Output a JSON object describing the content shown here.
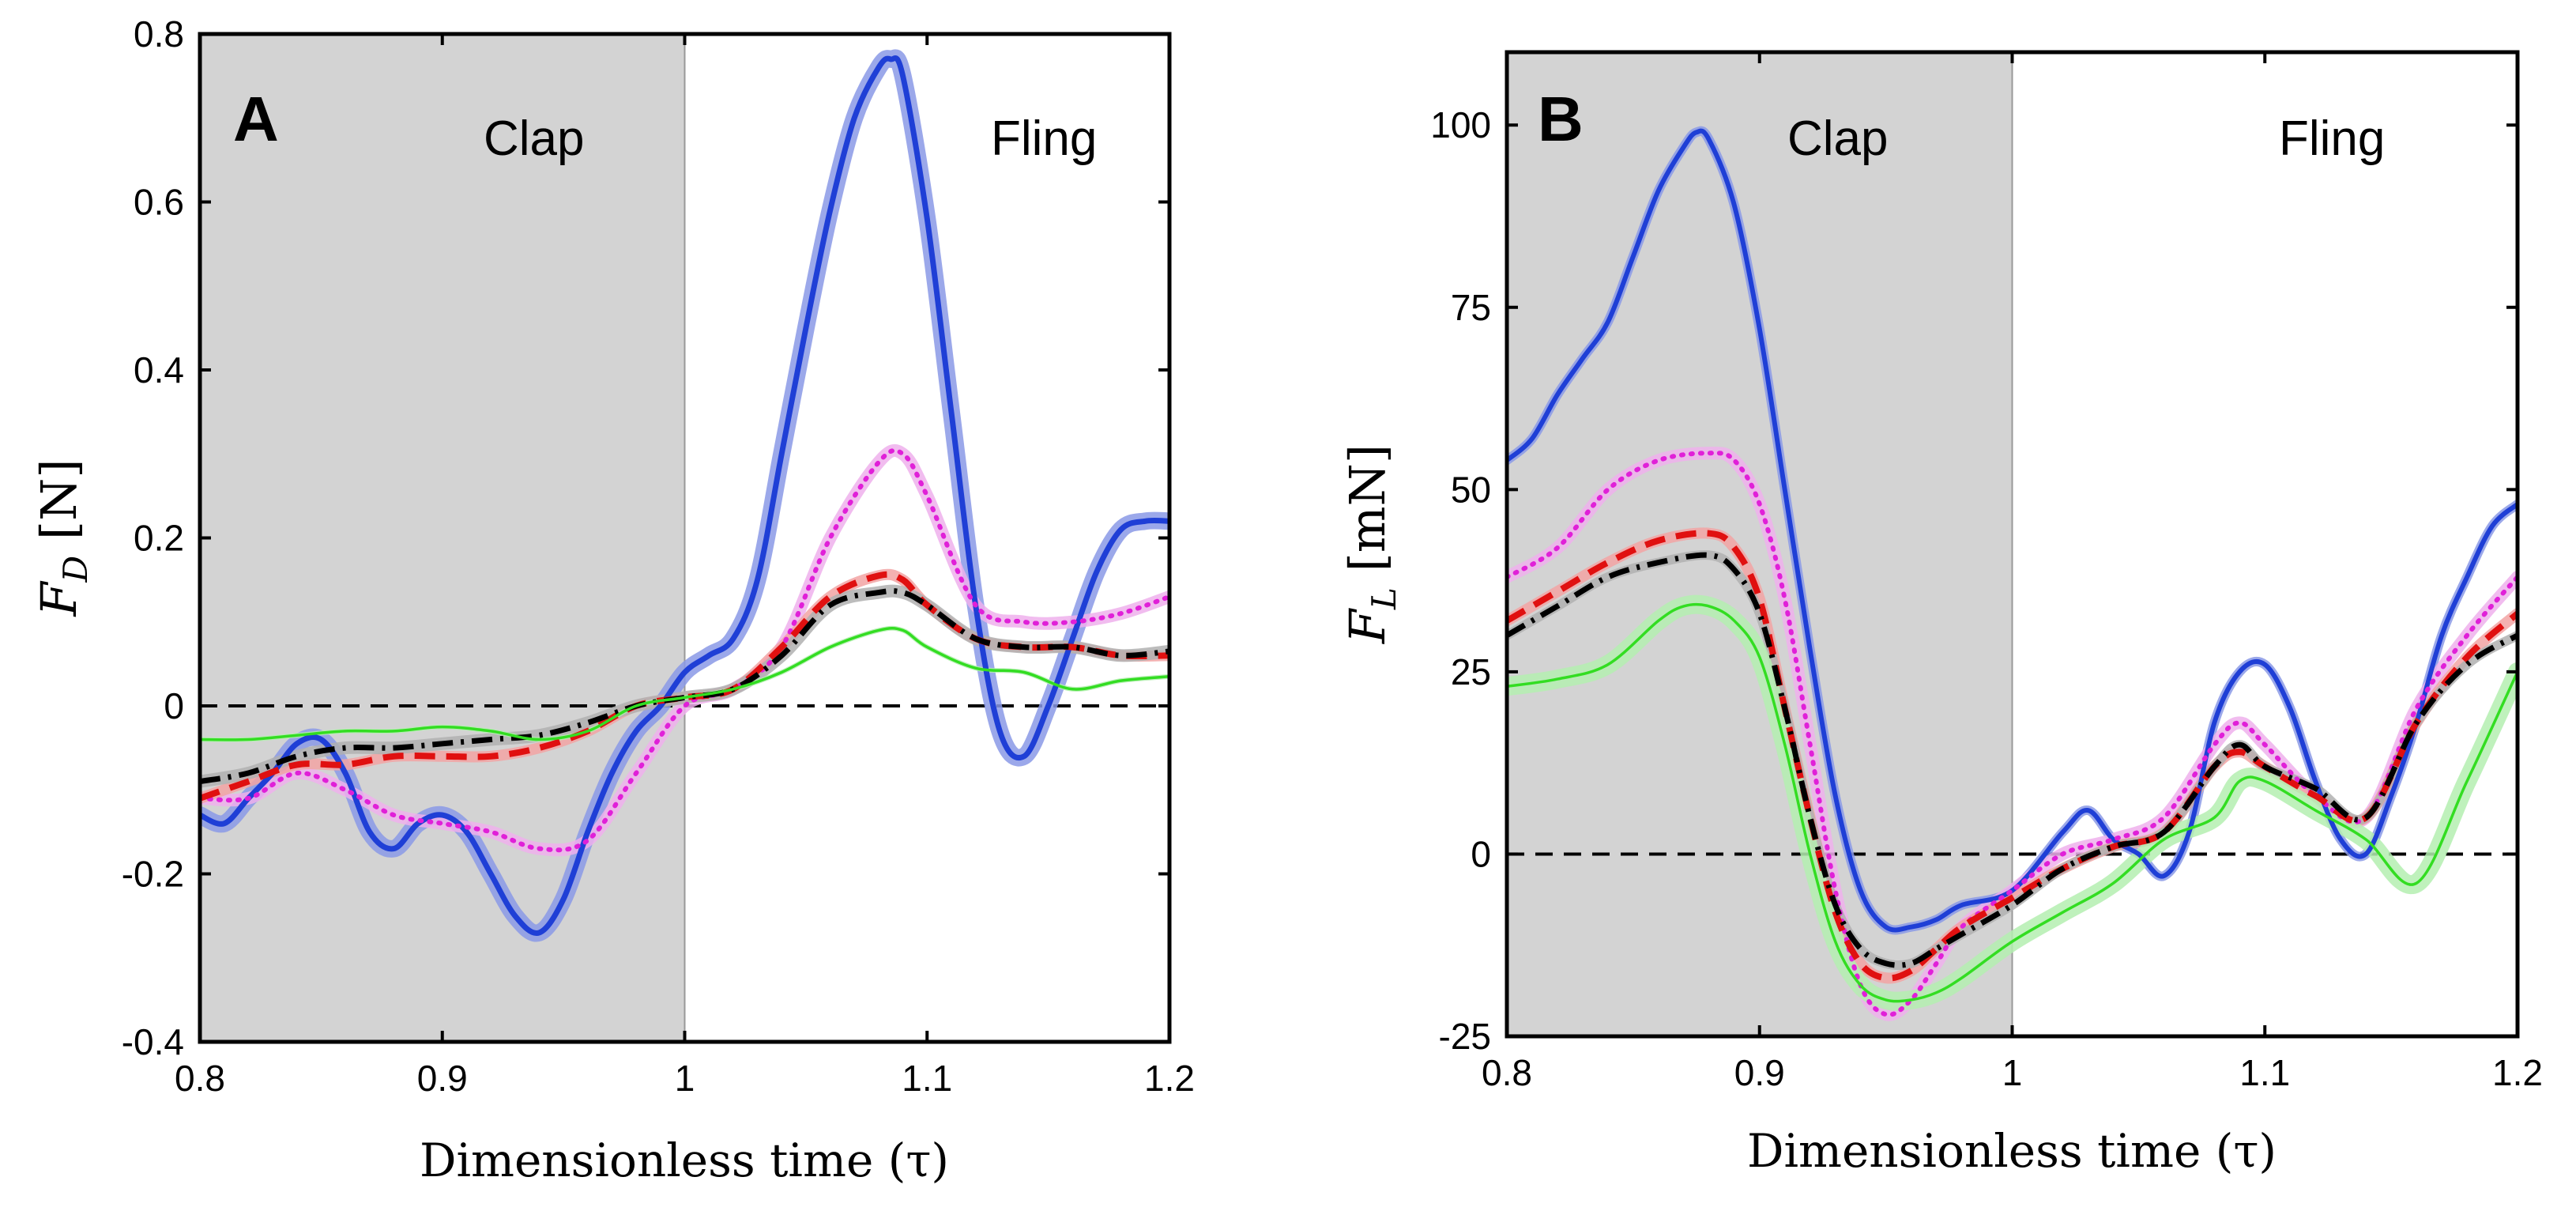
{
  "chart_data": [
    {
      "type": "line",
      "panel_label": "A",
      "regions": [
        {
          "label": "Clap",
          "x_range": [
            0.8,
            1.0
          ],
          "shaded": true,
          "color": "#d3d3d3"
        },
        {
          "label": "Fling",
          "x_range": [
            1.0,
            1.2
          ],
          "shaded": false
        }
      ],
      "xlabel": "Dimensionless time (τ)",
      "ylabel": "F_D [N]",
      "ylabel_main": "F",
      "ylabel_sub": "D",
      "ylabel_unit": " [N]",
      "xlim": [
        0.8,
        1.2
      ],
      "ylim": [
        -0.4,
        0.8
      ],
      "xticks": [
        0.8,
        0.9,
        1,
        1.1,
        1.2
      ],
      "xtick_labels": [
        "0.8",
        "0.9",
        "1",
        "1.1",
        "1.2"
      ],
      "yticks": [
        -0.4,
        -0.2,
        0,
        0.2,
        0.4,
        0.6,
        0.8
      ],
      "ytick_labels": [
        "-0.4",
        "-0.2",
        "0",
        "0.2",
        "0.4",
        "0.6",
        "0.8"
      ],
      "zero_line": true,
      "series": [
        {
          "name": "blue",
          "color": "#1f3fd6",
          "style": "solid",
          "width": 7,
          "band": "#8a99e6",
          "band_width": 22,
          "x": [
            0.8,
            0.81,
            0.82,
            0.83,
            0.84,
            0.85,
            0.86,
            0.87,
            0.88,
            0.89,
            0.9,
            0.91,
            0.92,
            0.93,
            0.94,
            0.95,
            0.96,
            0.97,
            0.98,
            0.99,
            1.0,
            1.01,
            1.02,
            1.03,
            1.04,
            1.05,
            1.06,
            1.07,
            1.08,
            1.085,
            1.09,
            1.1,
            1.11,
            1.12,
            1.13,
            1.14,
            1.15,
            1.16,
            1.17,
            1.18,
            1.19,
            1.2
          ],
          "y": [
            -0.13,
            -0.14,
            -0.11,
            -0.08,
            -0.045,
            -0.04,
            -0.08,
            -0.15,
            -0.17,
            -0.14,
            -0.13,
            -0.15,
            -0.2,
            -0.25,
            -0.27,
            -0.23,
            -0.15,
            -0.08,
            -0.03,
            0.0,
            0.04,
            0.06,
            0.08,
            0.15,
            0.3,
            0.45,
            0.59,
            0.7,
            0.76,
            0.77,
            0.75,
            0.58,
            0.35,
            0.12,
            -0.03,
            -0.06,
            0.0,
            0.08,
            0.16,
            0.21,
            0.22,
            0.22
          ]
        },
        {
          "name": "magenta",
          "color": "#e020d8",
          "style": "dotted",
          "width": 6,
          "band": "#eeb0ec",
          "band_width": 16,
          "x": [
            0.8,
            0.82,
            0.84,
            0.86,
            0.88,
            0.9,
            0.92,
            0.94,
            0.96,
            0.98,
            1.0,
            1.02,
            1.04,
            1.06,
            1.08,
            1.09,
            1.1,
            1.12,
            1.14,
            1.16,
            1.18,
            1.2
          ],
          "y": [
            -0.11,
            -0.11,
            -0.08,
            -0.1,
            -0.13,
            -0.14,
            -0.15,
            -0.17,
            -0.16,
            -0.08,
            0.0,
            0.02,
            0.07,
            0.2,
            0.29,
            0.3,
            0.25,
            0.12,
            0.1,
            0.1,
            0.11,
            0.13
          ]
        },
        {
          "name": "red",
          "color": "#e01010",
          "style": "dashed",
          "width": 8,
          "band": "#f2a3a3",
          "band_width": 14,
          "x": [
            0.8,
            0.82,
            0.84,
            0.86,
            0.88,
            0.9,
            0.92,
            0.94,
            0.96,
            0.98,
            1.0,
            1.02,
            1.04,
            1.06,
            1.08,
            1.09,
            1.1,
            1.12,
            1.14,
            1.16,
            1.18,
            1.2
          ],
          "y": [
            -0.11,
            -0.09,
            -0.07,
            -0.07,
            -0.06,
            -0.06,
            -0.06,
            -0.05,
            -0.03,
            0.0,
            0.01,
            0.02,
            0.07,
            0.13,
            0.155,
            0.15,
            0.12,
            0.08,
            0.07,
            0.07,
            0.06,
            0.06
          ]
        },
        {
          "name": "black",
          "color": "#000000",
          "style": "dashdot",
          "width": 7,
          "band": "#b0b0b0",
          "band_width": 16,
          "x": [
            0.8,
            0.82,
            0.84,
            0.86,
            0.88,
            0.9,
            0.92,
            0.94,
            0.96,
            0.98,
            1.0,
            1.02,
            1.04,
            1.06,
            1.08,
            1.09,
            1.1,
            1.12,
            1.14,
            1.16,
            1.18,
            1.2
          ],
          "y": [
            -0.09,
            -0.08,
            -0.06,
            -0.05,
            -0.05,
            -0.045,
            -0.04,
            -0.035,
            -0.02,
            0.0,
            0.01,
            0.02,
            0.06,
            0.12,
            0.135,
            0.135,
            0.12,
            0.08,
            0.07,
            0.07,
            0.06,
            0.065
          ]
        },
        {
          "name": "green",
          "color": "#33dd22",
          "style": "solid",
          "width": 3.5,
          "band": "#b4efb0",
          "band_width": 6,
          "x": [
            0.8,
            0.82,
            0.84,
            0.86,
            0.88,
            0.9,
            0.92,
            0.94,
            0.96,
            0.98,
            1.0,
            1.02,
            1.04,
            1.06,
            1.08,
            1.09,
            1.1,
            1.12,
            1.14,
            1.16,
            1.18,
            1.2
          ],
          "y": [
            -0.04,
            -0.04,
            -0.035,
            -0.03,
            -0.03,
            -0.025,
            -0.03,
            -0.04,
            -0.03,
            0.0,
            0.01,
            0.02,
            0.04,
            0.07,
            0.09,
            0.09,
            0.07,
            0.045,
            0.04,
            0.02,
            0.03,
            0.035
          ]
        }
      ]
    },
    {
      "type": "line",
      "panel_label": "B",
      "regions": [
        {
          "label": "Clap",
          "x_range": [
            0.8,
            1.0
          ],
          "shaded": true,
          "color": "#d3d3d3"
        },
        {
          "label": "Fling",
          "x_range": [
            1.0,
            1.2
          ],
          "shaded": false
        }
      ],
      "xlabel": "Dimensionless time (τ)",
      "ylabel": "F_L [mN]",
      "ylabel_main": "F",
      "ylabel_sub": "L",
      "ylabel_unit": " [mN]",
      "xlim": [
        0.8,
        1.2
      ],
      "ylim": [
        -25,
        110
      ],
      "xticks": [
        0.8,
        0.9,
        1,
        1.1,
        1.2
      ],
      "xtick_labels": [
        "0.8",
        "0.9",
        "1",
        "1.1",
        "1.2"
      ],
      "yticks": [
        -25,
        0,
        25,
        50,
        75,
        100
      ],
      "ytick_labels": [
        "-25",
        "0",
        "25",
        "50",
        "75",
        "100"
      ],
      "zero_line": true,
      "series": [
        {
          "name": "blue",
          "color": "#1f3fd6",
          "style": "solid",
          "width": 6,
          "band": "#8a99e6",
          "band_width": 12,
          "x": [
            0.8,
            0.81,
            0.82,
            0.83,
            0.84,
            0.85,
            0.86,
            0.87,
            0.875,
            0.88,
            0.89,
            0.9,
            0.91,
            0.92,
            0.93,
            0.94,
            0.95,
            0.96,
            0.97,
            0.98,
            1.0,
            1.02,
            1.03,
            1.04,
            1.05,
            1.06,
            1.07,
            1.08,
            1.09,
            1.1,
            1.11,
            1.12,
            1.13,
            1.14,
            1.15,
            1.16,
            1.17,
            1.18,
            1.19,
            1.2
          ],
          "y": [
            54,
            57,
            63,
            68,
            73,
            82,
            91,
            97,
            99,
            98,
            89,
            72,
            50,
            28,
            8,
            -5,
            -10,
            -10,
            -9,
            -7,
            -5,
            3,
            6,
            2,
            0,
            -3,
            3,
            18,
            25,
            26,
            20,
            10,
            2,
            0,
            8,
            18,
            30,
            38,
            45,
            48
          ]
        },
        {
          "name": "magenta",
          "color": "#e020d8",
          "style": "dotted",
          "width": 6,
          "band": "#eeb0ec",
          "band_width": 16,
          "x": [
            0.8,
            0.82,
            0.84,
            0.86,
            0.88,
            0.89,
            0.9,
            0.91,
            0.92,
            0.93,
            0.94,
            0.95,
            0.96,
            0.97,
            0.98,
            1.0,
            1.02,
            1.04,
            1.06,
            1.08,
            1.09,
            1.1,
            1.12,
            1.14,
            1.16,
            1.18,
            1.2
          ],
          "y": [
            38,
            42,
            50,
            54,
            55,
            54,
            48,
            35,
            15,
            -5,
            -18,
            -22,
            -20,
            -15,
            -10,
            -5,
            0,
            2,
            5,
            15,
            18,
            15,
            8,
            5,
            20,
            30,
            38
          ]
        },
        {
          "name": "red",
          "color": "#e01010",
          "style": "dashed",
          "width": 8,
          "band": "#f2a3a3",
          "band_width": 14,
          "x": [
            0.8,
            0.82,
            0.84,
            0.86,
            0.88,
            0.89,
            0.9,
            0.91,
            0.92,
            0.93,
            0.94,
            0.95,
            0.96,
            0.97,
            0.98,
            1.0,
            1.02,
            1.04,
            1.06,
            1.08,
            1.09,
            1.1,
            1.12,
            1.14,
            1.16,
            1.18,
            1.2
          ],
          "y": [
            32,
            36,
            40,
            43,
            44,
            42,
            35,
            20,
            5,
            -8,
            -15,
            -17,
            -16,
            -13,
            -10,
            -6,
            -2,
            1,
            3,
            12,
            14,
            12,
            8,
            5,
            18,
            27,
            33
          ]
        },
        {
          "name": "black",
          "color": "#000000",
          "style": "dashdot",
          "width": 7,
          "band": "#b0b0b0",
          "band_width": 12,
          "x": [
            0.8,
            0.82,
            0.84,
            0.86,
            0.88,
            0.89,
            0.9,
            0.91,
            0.92,
            0.93,
            0.94,
            0.95,
            0.96,
            0.97,
            0.98,
            1.0,
            1.02,
            1.04,
            1.06,
            1.08,
            1.09,
            1.1,
            1.12,
            1.14,
            1.16,
            1.18,
            1.2
          ],
          "y": [
            30,
            34,
            38,
            40,
            41,
            39,
            33,
            20,
            5,
            -7,
            -13,
            -15,
            -15,
            -13,
            -11,
            -7,
            -2,
            1,
            3,
            12,
            15,
            12,
            9,
            5,
            18,
            26,
            30
          ]
        },
        {
          "name": "green",
          "color": "#33dd22",
          "style": "solid",
          "width": 3.5,
          "band": "#b4efb0",
          "band_width": 24,
          "x": [
            0.8,
            0.82,
            0.84,
            0.86,
            0.87,
            0.88,
            0.89,
            0.9,
            0.91,
            0.92,
            0.93,
            0.94,
            0.95,
            0.96,
            0.97,
            0.98,
            1.0,
            1.02,
            1.04,
            1.06,
            1.08,
            1.09,
            1.1,
            1.12,
            1.14,
            1.16,
            1.18,
            1.2
          ],
          "y": [
            23,
            24,
            26,
            32,
            34,
            34,
            32,
            27,
            15,
            0,
            -12,
            -18,
            -20,
            -20,
            -19,
            -17,
            -12,
            -8,
            -4,
            2,
            5,
            10,
            10,
            6,
            2,
            -4,
            10,
            25
          ]
        }
      ]
    }
  ]
}
